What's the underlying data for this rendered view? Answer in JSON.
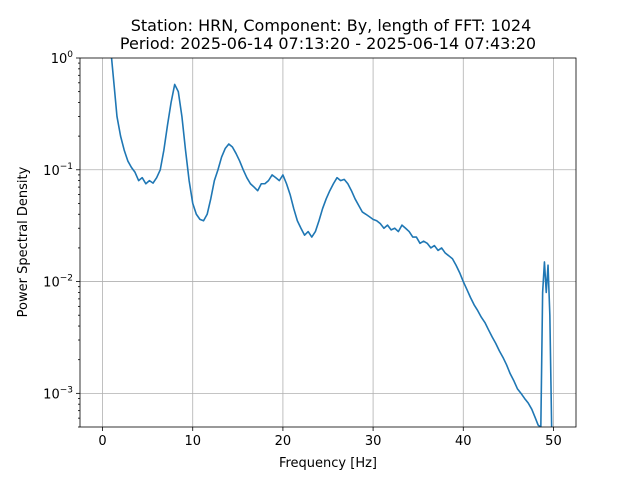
{
  "chart_data": {
    "type": "line",
    "title_line1": "Station: HRN, Component: By, length of FFT: 1024",
    "title_line2": "Period: 2025-06-14 07:13:20 - 2025-06-14 07:43:20",
    "xlabel": "Frequency [Hz]",
    "ylabel": "Power Spectral Density",
    "xlim": [
      -2.5,
      52.5
    ],
    "ylim": [
      0.0005,
      1
    ],
    "yscale": "log",
    "grid": true,
    "x_ticks": [
      0,
      10,
      20,
      30,
      40,
      50
    ],
    "x_tick_labels": [
      "0",
      "10",
      "20",
      "30",
      "40",
      "50"
    ],
    "y_ticks": [
      {
        "value": 1,
        "base": "10",
        "exp": "0"
      },
      {
        "value": 0.1,
        "base": "10",
        "exp": "−1"
      },
      {
        "value": 0.01,
        "base": "10",
        "exp": "−2"
      },
      {
        "value": 0.001,
        "base": "10",
        "exp": "−3"
      }
    ],
    "series": [
      {
        "color": "#1f77b4",
        "x": [
          1.0,
          1.3,
          1.6,
          2.0,
          2.4,
          2.8,
          3.2,
          3.6,
          4.0,
          4.4,
          4.8,
          5.2,
          5.6,
          6.0,
          6.4,
          6.8,
          7.2,
          7.6,
          8.0,
          8.4,
          8.8,
          9.2,
          9.6,
          10.0,
          10.4,
          10.8,
          11.2,
          11.6,
          12.0,
          12.4,
          12.8,
          13.2,
          13.6,
          14.0,
          14.4,
          14.8,
          15.2,
          15.6,
          16.0,
          16.4,
          16.8,
          17.2,
          17.6,
          18.0,
          18.4,
          18.8,
          19.2,
          19.6,
          20.0,
          20.4,
          20.8,
          21.2,
          21.6,
          22.0,
          22.4,
          22.8,
          23.2,
          23.6,
          24.0,
          24.4,
          24.8,
          25.2,
          25.6,
          26.0,
          26.4,
          26.8,
          27.2,
          27.6,
          28.0,
          28.4,
          28.8,
          29.2,
          29.6,
          30.0,
          30.4,
          30.8,
          31.2,
          31.6,
          32.0,
          32.4,
          32.8,
          33.2,
          33.6,
          34.0,
          34.4,
          34.8,
          35.2,
          35.6,
          36.0,
          36.4,
          36.8,
          37.2,
          37.6,
          38.0,
          38.4,
          38.8,
          39.2,
          39.6,
          40.0,
          40.4,
          40.8,
          41.2,
          41.6,
          42.0,
          42.4,
          42.8,
          43.2,
          43.6,
          44.0,
          44.4,
          44.8,
          45.2,
          45.6,
          46.0,
          46.4,
          46.8,
          47.2,
          47.6,
          48.0,
          48.3,
          48.6,
          48.8,
          49.0,
          49.2,
          49.4,
          49.6,
          49.8
        ],
        "y": [
          1.0,
          0.55,
          0.3,
          0.2,
          0.15,
          0.12,
          0.105,
          0.095,
          0.08,
          0.085,
          0.075,
          0.08,
          0.076,
          0.085,
          0.1,
          0.15,
          0.25,
          0.4,
          0.58,
          0.5,
          0.3,
          0.15,
          0.08,
          0.05,
          0.04,
          0.036,
          0.035,
          0.04,
          0.055,
          0.08,
          0.1,
          0.13,
          0.155,
          0.17,
          0.16,
          0.14,
          0.12,
          0.1,
          0.085,
          0.075,
          0.07,
          0.065,
          0.075,
          0.075,
          0.08,
          0.09,
          0.085,
          0.08,
          0.09,
          0.075,
          0.06,
          0.045,
          0.035,
          0.03,
          0.026,
          0.028,
          0.025,
          0.028,
          0.035,
          0.045,
          0.055,
          0.065,
          0.075,
          0.085,
          0.08,
          0.082,
          0.075,
          0.065,
          0.055,
          0.048,
          0.042,
          0.04,
          0.038,
          0.036,
          0.035,
          0.033,
          0.03,
          0.032,
          0.029,
          0.03,
          0.028,
          0.032,
          0.03,
          0.028,
          0.025,
          0.025,
          0.022,
          0.023,
          0.022,
          0.02,
          0.021,
          0.019,
          0.02,
          0.018,
          0.017,
          0.016,
          0.014,
          0.012,
          0.01,
          0.0085,
          0.0072,
          0.0062,
          0.0055,
          0.0048,
          0.0043,
          0.0037,
          0.0032,
          0.0028,
          0.0024,
          0.0021,
          0.0018,
          0.0015,
          0.0013,
          0.0011,
          0.001,
          0.0009,
          0.00082,
          0.00072,
          0.0006,
          0.00052,
          0.0005,
          0.008,
          0.015,
          0.008,
          0.014,
          0.005,
          0.0005
        ]
      }
    ]
  }
}
